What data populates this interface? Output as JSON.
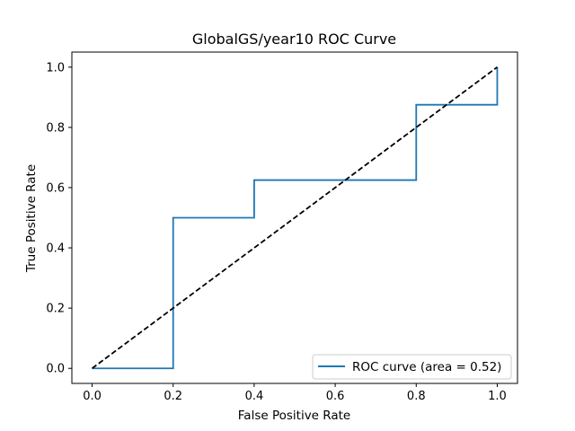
{
  "chart_data": {
    "type": "line",
    "title": "GlobalGS/year10 ROC Curve",
    "xlabel": "False Positive Rate",
    "ylabel": "True Positive Rate",
    "xlim": [
      -0.05,
      1.05
    ],
    "ylim": [
      -0.05,
      1.05
    ],
    "xticks": [
      0.0,
      0.2,
      0.4,
      0.6,
      0.8,
      1.0
    ],
    "yticks": [
      0.0,
      0.2,
      0.4,
      0.6,
      0.8,
      1.0
    ],
    "xtick_labels": [
      "0.0",
      "0.2",
      "0.4",
      "0.6",
      "0.8",
      "1.0"
    ],
    "ytick_labels": [
      "0.0",
      "0.2",
      "0.4",
      "0.6",
      "0.8",
      "1.0"
    ],
    "grid": false,
    "legend_position": "lower-right",
    "series": [
      {
        "name": "ROC curve (area = 0.52)",
        "color": "#1f77b4",
        "style": "solid",
        "x": [
          0.0,
          0.2,
          0.2,
          0.4,
          0.4,
          0.8,
          0.8,
          1.0,
          1.0
        ],
        "y": [
          0.0,
          0.0,
          0.5,
          0.5,
          0.625,
          0.625,
          0.875,
          0.875,
          1.0
        ]
      },
      {
        "color": "#000000",
        "style": "dashed",
        "x": [
          0.0,
          1.0
        ],
        "y": [
          0.0,
          1.0
        ]
      }
    ]
  }
}
